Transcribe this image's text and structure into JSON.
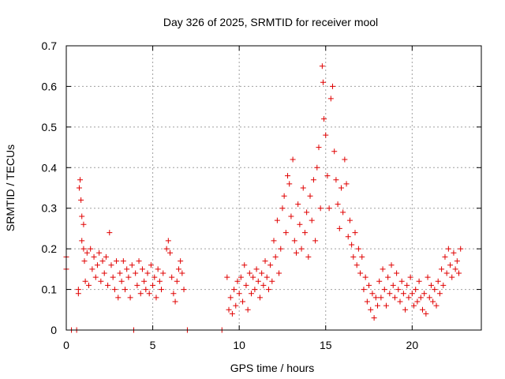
{
  "chart_data": {
    "type": "scatter",
    "title": "Day 326 of 2025, SRMTID for receiver mool",
    "xlabel": "GPS time / hours",
    "ylabel": "SRMTID / TECUs",
    "xlim": [
      0,
      24
    ],
    "ylim": [
      0,
      0.7
    ],
    "grid": true,
    "x_ticks": [
      {
        "value": 0,
        "label": "0"
      },
      {
        "value": 5,
        "label": "5"
      },
      {
        "value": 10,
        "label": "10"
      },
      {
        "value": 15,
        "label": "15"
      },
      {
        "value": 20,
        "label": "20"
      }
    ],
    "y_ticks": [
      {
        "value": 0,
        "label": "0"
      },
      {
        "value": 0.1,
        "label": "0.1"
      },
      {
        "value": 0.2,
        "label": "0.2"
      },
      {
        "value": 0.3,
        "label": "0.3"
      },
      {
        "value": 0.4,
        "label": "0.4"
      },
      {
        "value": 0.5,
        "label": "0.5"
      },
      {
        "value": 0.6,
        "label": "0.6"
      },
      {
        "value": 0.7,
        "label": "0.7"
      }
    ],
    "marker": "+",
    "color": "#e00000",
    "grid_color": "#a0a0a0",
    "series": [
      {
        "name": "SRMTID",
        "points": [
          [
            0.0,
            0.18
          ],
          [
            0.0,
            0.15
          ],
          [
            0.3,
            0.0
          ],
          [
            0.6,
            0.0
          ],
          [
            0.7,
            0.1
          ],
          [
            0.7,
            0.09
          ],
          [
            0.75,
            0.35
          ],
          [
            0.8,
            0.37
          ],
          [
            0.85,
            0.32
          ],
          [
            0.9,
            0.28
          ],
          [
            0.9,
            0.22
          ],
          [
            1.0,
            0.26
          ],
          [
            1.0,
            0.2
          ],
          [
            1.05,
            0.17
          ],
          [
            1.1,
            0.12
          ],
          [
            1.2,
            0.19
          ],
          [
            1.3,
            0.11
          ],
          [
            1.4,
            0.2
          ],
          [
            1.5,
            0.15
          ],
          [
            1.6,
            0.18
          ],
          [
            1.7,
            0.13
          ],
          [
            1.8,
            0.16
          ],
          [
            1.9,
            0.19
          ],
          [
            2.0,
            0.12
          ],
          [
            2.1,
            0.17
          ],
          [
            2.2,
            0.14
          ],
          [
            2.3,
            0.18
          ],
          [
            2.4,
            0.11
          ],
          [
            2.5,
            0.24
          ],
          [
            2.6,
            0.16
          ],
          [
            2.7,
            0.13
          ],
          [
            2.8,
            0.1
          ],
          [
            2.9,
            0.17
          ],
          [
            3.0,
            0.08
          ],
          [
            3.1,
            0.14
          ],
          [
            3.2,
            0.12
          ],
          [
            3.3,
            0.17
          ],
          [
            3.4,
            0.1
          ],
          [
            3.5,
            0.15
          ],
          [
            3.6,
            0.13
          ],
          [
            3.7,
            0.08
          ],
          [
            3.8,
            0.16
          ],
          [
            3.9,
            0.0
          ],
          [
            4.0,
            0.14
          ],
          [
            4.1,
            0.11
          ],
          [
            4.2,
            0.17
          ],
          [
            4.3,
            0.09
          ],
          [
            4.4,
            0.15
          ],
          [
            4.5,
            0.12
          ],
          [
            4.6,
            0.1
          ],
          [
            4.7,
            0.14
          ],
          [
            4.8,
            0.09
          ],
          [
            4.9,
            0.16
          ],
          [
            5.0,
            0.11
          ],
          [
            5.1,
            0.13
          ],
          [
            5.2,
            0.08
          ],
          [
            5.3,
            0.15
          ],
          [
            5.4,
            0.12
          ],
          [
            5.5,
            0.1
          ],
          [
            5.6,
            0.14
          ],
          [
            5.8,
            0.2
          ],
          [
            5.9,
            0.22
          ],
          [
            6.0,
            0.19
          ],
          [
            6.1,
            0.13
          ],
          [
            6.2,
            0.09
          ],
          [
            6.3,
            0.07
          ],
          [
            6.4,
            0.12
          ],
          [
            6.5,
            0.15
          ],
          [
            6.6,
            0.17
          ],
          [
            6.7,
            0.14
          ],
          [
            6.8,
            0.1
          ],
          [
            7.0,
            0.0
          ],
          [
            9.0,
            0.0
          ],
          [
            9.3,
            0.13
          ],
          [
            9.4,
            0.05
          ],
          [
            9.5,
            0.08
          ],
          [
            9.6,
            0.04
          ],
          [
            9.7,
            0.1
          ],
          [
            9.8,
            0.06
          ],
          [
            9.9,
            0.12
          ],
          [
            10.0,
            0.09
          ],
          [
            10.1,
            0.13
          ],
          [
            10.2,
            0.07
          ],
          [
            10.3,
            0.16
          ],
          [
            10.4,
            0.11
          ],
          [
            10.5,
            0.05
          ],
          [
            10.6,
            0.14
          ],
          [
            10.7,
            0.09
          ],
          [
            10.8,
            0.13
          ],
          [
            10.9,
            0.1
          ],
          [
            11.0,
            0.15
          ],
          [
            11.1,
            0.12
          ],
          [
            11.2,
            0.08
          ],
          [
            11.3,
            0.14
          ],
          [
            11.4,
            0.11
          ],
          [
            11.5,
            0.17
          ],
          [
            11.6,
            0.13
          ],
          [
            11.7,
            0.1
          ],
          [
            11.8,
            0.16
          ],
          [
            11.9,
            0.12
          ],
          [
            12.0,
            0.22
          ],
          [
            12.1,
            0.18
          ],
          [
            12.2,
            0.27
          ],
          [
            12.3,
            0.14
          ],
          [
            12.4,
            0.2
          ],
          [
            12.5,
            0.3
          ],
          [
            12.6,
            0.33
          ],
          [
            12.7,
            0.24
          ],
          [
            12.8,
            0.38
          ],
          [
            12.9,
            0.36
          ],
          [
            13.0,
            0.28
          ],
          [
            13.1,
            0.42
          ],
          [
            13.2,
            0.22
          ],
          [
            13.3,
            0.19
          ],
          [
            13.4,
            0.31
          ],
          [
            13.5,
            0.26
          ],
          [
            13.6,
            0.2
          ],
          [
            13.7,
            0.35
          ],
          [
            13.8,
            0.24
          ],
          [
            13.9,
            0.29
          ],
          [
            14.0,
            0.18
          ],
          [
            14.1,
            0.33
          ],
          [
            14.2,
            0.27
          ],
          [
            14.3,
            0.37
          ],
          [
            14.4,
            0.22
          ],
          [
            14.5,
            0.4
          ],
          [
            14.6,
            0.45
          ],
          [
            14.7,
            0.3
          ],
          [
            14.8,
            0.65
          ],
          [
            14.85,
            0.61
          ],
          [
            14.9,
            0.52
          ],
          [
            15.0,
            0.48
          ],
          [
            15.1,
            0.38
          ],
          [
            15.2,
            0.3
          ],
          [
            15.3,
            0.57
          ],
          [
            15.4,
            0.6
          ],
          [
            15.5,
            0.44
          ],
          [
            15.6,
            0.37
          ],
          [
            15.7,
            0.31
          ],
          [
            15.8,
            0.25
          ],
          [
            15.9,
            0.35
          ],
          [
            16.0,
            0.29
          ],
          [
            16.1,
            0.42
          ],
          [
            16.2,
            0.36
          ],
          [
            16.3,
            0.23
          ],
          [
            16.4,
            0.27
          ],
          [
            16.5,
            0.21
          ],
          [
            16.6,
            0.18
          ],
          [
            16.7,
            0.24
          ],
          [
            16.8,
            0.16
          ],
          [
            16.9,
            0.2
          ],
          [
            17.0,
            0.14
          ],
          [
            17.1,
            0.18
          ],
          [
            17.2,
            0.1
          ],
          [
            17.3,
            0.13
          ],
          [
            17.4,
            0.07
          ],
          [
            17.5,
            0.11
          ],
          [
            17.6,
            0.05
          ],
          [
            17.7,
            0.09
          ],
          [
            17.8,
            0.03
          ],
          [
            17.9,
            0.08
          ],
          [
            18.0,
            0.06
          ],
          [
            18.1,
            0.12
          ],
          [
            18.2,
            0.08
          ],
          [
            18.3,
            0.15
          ],
          [
            18.4,
            0.1
          ],
          [
            18.5,
            0.06
          ],
          [
            18.6,
            0.13
          ],
          [
            18.7,
            0.09
          ],
          [
            18.8,
            0.16
          ],
          [
            18.9,
            0.11
          ],
          [
            19.0,
            0.08
          ],
          [
            19.1,
            0.14
          ],
          [
            19.2,
            0.1
          ],
          [
            19.3,
            0.07
          ],
          [
            19.4,
            0.12
          ],
          [
            19.5,
            0.09
          ],
          [
            19.6,
            0.05
          ],
          [
            19.7,
            0.11
          ],
          [
            19.8,
            0.08
          ],
          [
            19.9,
            0.13
          ],
          [
            20.0,
            0.09
          ],
          [
            20.1,
            0.06
          ],
          [
            20.2,
            0.1
          ],
          [
            20.3,
            0.07
          ],
          [
            20.4,
            0.12
          ],
          [
            20.5,
            0.08
          ],
          [
            20.6,
            0.05
          ],
          [
            20.7,
            0.09
          ],
          [
            20.8,
            0.04
          ],
          [
            20.9,
            0.13
          ],
          [
            21.0,
            0.08
          ],
          [
            21.1,
            0.11
          ],
          [
            21.2,
            0.07
          ],
          [
            21.3,
            0.1
          ],
          [
            21.4,
            0.06
          ],
          [
            21.5,
            0.12
          ],
          [
            21.6,
            0.09
          ],
          [
            21.7,
            0.15
          ],
          [
            21.8,
            0.11
          ],
          [
            21.9,
            0.18
          ],
          [
            22.0,
            0.14
          ],
          [
            22.1,
            0.2
          ],
          [
            22.2,
            0.16
          ],
          [
            22.3,
            0.13
          ],
          [
            22.4,
            0.19
          ],
          [
            22.5,
            0.15
          ],
          [
            22.6,
            0.17
          ],
          [
            22.7,
            0.14
          ],
          [
            22.8,
            0.2
          ]
        ]
      }
    ]
  }
}
